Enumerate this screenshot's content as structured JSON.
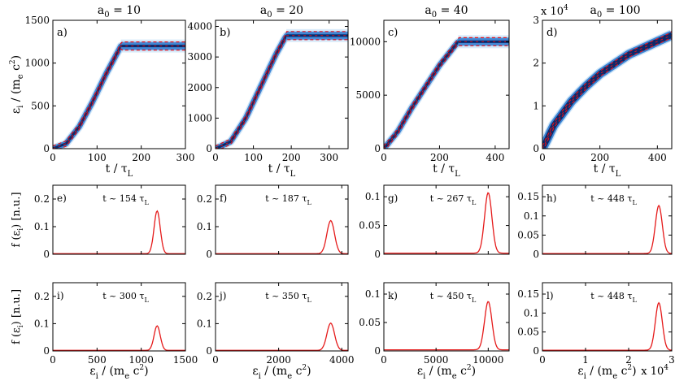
{
  "chart_data": {
    "type": "figure-grid",
    "top_row": [
      {
        "id": "a",
        "panel_label": "a)",
        "title": "a0 = 10",
        "column_title": {
          "base": "a",
          "sub": "0",
          "rest": " = 10"
        },
        "xlim": [
          0,
          300
        ],
        "ylim": [
          0,
          1500
        ],
        "xticks": [
          "0",
          "100",
          "200",
          "300"
        ],
        "yticks": [
          "0",
          "500",
          "1000",
          "1500"
        ],
        "sat_t": 154,
        "e_max": 1200,
        "yscale_label": "",
        "fit_points": [
          [
            0,
            0
          ],
          [
            30,
            60
          ],
          [
            60,
            260
          ],
          [
            90,
            550
          ],
          [
            120,
            870
          ],
          [
            154,
            1200
          ],
          [
            300,
            1200
          ]
        ]
      },
      {
        "id": "b",
        "panel_label": "b)",
        "title": "a0 = 20",
        "column_title": {
          "base": "a",
          "sub": "0",
          "rest": " = 20"
        },
        "xlim": [
          0,
          350
        ],
        "ylim": [
          0,
          4200
        ],
        "xticks": [
          "0",
          "100",
          "200",
          "300"
        ],
        "yticks": [
          "0",
          "1000",
          "2000",
          "3000",
          "4000"
        ],
        "sat_t": 187,
        "e_max": 3700,
        "yscale_label": "",
        "fit_points": [
          [
            0,
            0
          ],
          [
            40,
            230
          ],
          [
            80,
            1000
          ],
          [
            120,
            2050
          ],
          [
            160,
            3100
          ],
          [
            187,
            3700
          ],
          [
            350,
            3700
          ]
        ]
      },
      {
        "id": "c",
        "panel_label": "c)",
        "title": "a0 = 40",
        "column_title": {
          "base": "a",
          "sub": "0",
          "rest": " = 40"
        },
        "xlim": [
          0,
          450
        ],
        "ylim": [
          0,
          12000
        ],
        "xticks": [
          "0",
          "200",
          "400"
        ],
        "yticks": [
          "0",
          "5000",
          "10000"
        ],
        "sat_t": 267,
        "e_max": 10000,
        "yscale_label": "",
        "fit_points": [
          [
            0,
            0
          ],
          [
            50,
            1600
          ],
          [
            100,
            3800
          ],
          [
            150,
            5800
          ],
          [
            200,
            7800
          ],
          [
            267,
            10000
          ],
          [
            450,
            10000
          ]
        ]
      },
      {
        "id": "d",
        "panel_label": "d)",
        "title": "a0 = 100",
        "column_title": {
          "base": "a",
          "sub": "0",
          "rest": " = 100"
        },
        "xlim": [
          0,
          450
        ],
        "ylim": [
          0,
          3
        ],
        "xticks": [
          "0",
          "200",
          "400"
        ],
        "yticks": [
          "0",
          "1",
          "2",
          "3"
        ],
        "sat_t": 448,
        "e_max": 2.65,
        "yscale_label": "x 10^4",
        "fit_points": [
          [
            0,
            0
          ],
          [
            40,
            0.55
          ],
          [
            100,
            1.1
          ],
          [
            150,
            1.45
          ],
          [
            200,
            1.75
          ],
          [
            300,
            2.2
          ],
          [
            448,
            2.65
          ]
        ]
      }
    ],
    "top_xlabel": {
      "main": "t / τ",
      "sub": "L"
    },
    "top_ylabel": {
      "main": "ε",
      "sub": "i",
      "rest": " / (m",
      "sub2": "e",
      "rest2": " c",
      "sup": "2",
      "rest3": ")"
    },
    "middle_row": [
      {
        "id": "e",
        "panel_label": "e)",
        "time_label": "t ~ 154 τ",
        "peak": 1180,
        "sigma": 35,
        "amp": 0.155,
        "xlim": [
          0,
          1500
        ],
        "ylim": [
          0,
          0.25
        ],
        "yticks": [
          "0",
          "0.1",
          "0.2"
        ]
      },
      {
        "id": "f",
        "panel_label": "f)",
        "time_label": "t ~ 187 τ",
        "peak": 3650,
        "sigma": 120,
        "amp": 0.12,
        "xlim": [
          0,
          4200
        ],
        "ylim": [
          0,
          0.25
        ],
        "yticks": [
          "0",
          "0.1",
          "0.2"
        ]
      },
      {
        "id": "g",
        "panel_label": "g)",
        "time_label": "t ~ 267 τ",
        "peak": 10000,
        "sigma": 350,
        "amp": 0.105,
        "xlim": [
          0,
          12000
        ],
        "ylim": [
          0,
          0.12
        ],
        "yticks": [
          "0",
          "0.05",
          "0.1"
        ]
      },
      {
        "id": "h",
        "panel_label": "h)",
        "time_label": "t ~ 448 τ",
        "peak": 2.7,
        "sigma": 0.08,
        "amp": 0.125,
        "xlim": [
          0,
          3
        ],
        "ylim": [
          0,
          0.18
        ],
        "yticks": [
          "0",
          "0.05",
          "0.1",
          "0.15"
        ]
      }
    ],
    "bottom_row": [
      {
        "id": "i",
        "panel_label": "i)",
        "time_label": "t ~ 300 τ",
        "peak": 1180,
        "sigma": 35,
        "amp": 0.09,
        "xlim": [
          0,
          1500
        ],
        "ylim": [
          0,
          0.25
        ],
        "yticks": [
          "0",
          "0.1",
          "0.2"
        ],
        "xticks": [
          "0",
          "500",
          "1000",
          "1500"
        ]
      },
      {
        "id": "j",
        "panel_label": "j)",
        "time_label": "t ~ 350 τ",
        "peak": 3650,
        "sigma": 120,
        "amp": 0.1,
        "xlim": [
          0,
          4200
        ],
        "ylim": [
          0,
          0.25
        ],
        "yticks": [
          "0",
          "0.1",
          "0.2"
        ],
        "xticks": [
          "0",
          "2000",
          "4000"
        ]
      },
      {
        "id": "k",
        "panel_label": "k)",
        "time_label": "t ~ 450 τ",
        "peak": 10000,
        "sigma": 350,
        "amp": 0.085,
        "xlim": [
          0,
          12000
        ],
        "ylim": [
          0,
          0.12
        ],
        "yticks": [
          "0",
          "0.05",
          "0.1"
        ],
        "xticks": [
          "0",
          "5000",
          "10000"
        ]
      },
      {
        "id": "l",
        "panel_label": "l)",
        "time_label": "t ~ 448 τ",
        "peak": 2.7,
        "sigma": 0.08,
        "amp": 0.125,
        "xlim": [
          0,
          3
        ],
        "ylim": [
          0,
          0.18
        ],
        "yticks": [
          "0",
          "0.05",
          "0.1",
          "0.15"
        ],
        "xticks": [
          "0",
          "1",
          "2",
          "3"
        ]
      }
    ],
    "time_label_sub": "L",
    "dist_ylabel": {
      "main": "f (ε",
      "sub": "i",
      "rest": ") [n.u.]"
    },
    "bottom_xlabel": {
      "main": "ε",
      "sub": "i",
      "rest": " / (m",
      "sub2": "e",
      "rest2": " c",
      "sup": "2",
      "rest3": ")"
    },
    "x_scale_note": "x 10^4",
    "colors": {
      "fit": "#e0101a",
      "band_dark": "#0a2a6b",
      "band_mid": "#2f7bd0",
      "band_light": "#b9daf5",
      "dist": "#e51a1a",
      "axis": "#000000"
    }
  }
}
